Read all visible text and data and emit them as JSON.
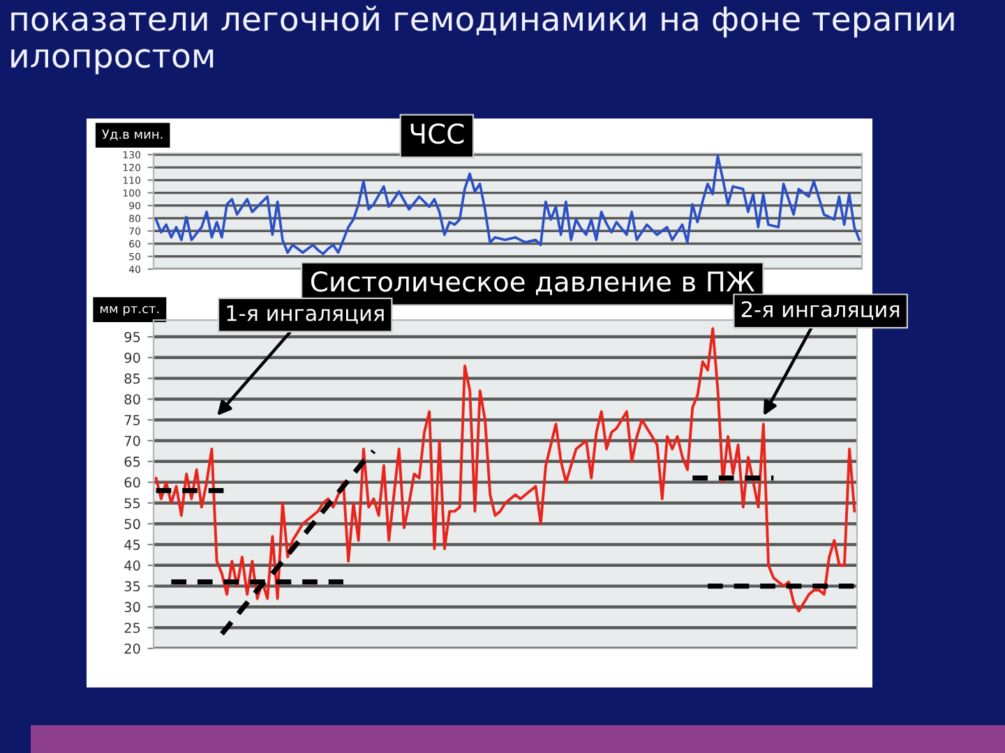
{
  "chart_data": [
    {
      "type": "line",
      "title": "показатели легочной гемодинамики на фоне терапии илопростом",
      "subtitle": "ЧСС",
      "ylabel": "Уд.в мин.",
      "ylim": [
        40,
        131
      ],
      "yticks": [
        40,
        50,
        60,
        70,
        80,
        90,
        100,
        110,
        120,
        130
      ],
      "grid": "y",
      "tick_labels": "y",
      "categories": [
        null,
        null,
        null,
        null,
        null,
        null,
        null,
        null,
        null,
        null,
        null,
        null,
        null,
        null,
        null,
        null,
        null,
        null,
        null,
        null,
        null,
        null,
        null,
        null,
        null,
        null,
        null,
        null,
        null,
        null,
        null,
        null,
        null,
        null,
        null,
        null,
        null,
        null,
        null,
        null,
        null,
        null,
        null,
        null,
        null,
        null,
        null,
        null,
        null,
        null,
        null,
        null,
        null,
        null,
        null,
        null,
        null,
        null,
        null,
        null,
        null,
        null,
        null,
        null,
        null,
        null,
        null,
        null,
        null,
        null,
        null,
        null,
        null,
        null,
        null,
        null,
        null,
        null,
        null,
        null,
        null,
        null,
        null,
        null,
        null,
        null,
        null,
        null,
        null,
        null,
        null,
        null,
        null,
        null,
        null,
        null,
        null,
        null,
        null,
        null,
        null,
        null,
        null,
        null,
        null,
        null,
        null,
        null,
        null,
        null,
        null,
        null,
        null,
        null,
        null,
        null,
        null,
        null,
        null,
        null,
        null,
        null,
        null,
        null,
        null,
        null,
        null,
        null,
        null,
        null,
        null,
        null,
        null,
        null,
        null,
        null,
        null,
        null,
        null,
        null
      ],
      "series": [
        {
          "color": "#2b4fc6",
          "values": [
            79,
            69,
            75,
            65,
            73,
            63,
            81,
            63,
            68,
            73,
            85,
            65,
            77,
            65,
            91,
            95,
            83,
            89,
            95,
            85,
            89,
            93,
            97,
            67,
            93,
            63,
            53,
            59,
            56,
            53,
            56,
            59,
            55,
            52,
            56,
            59,
            53,
            63,
            73,
            79,
            91,
            109,
            87,
            91,
            98,
            105,
            89,
            95,
            101,
            94,
            87,
            92,
            97,
            93,
            89,
            95,
            85,
            67,
            77,
            75,
            79,
            103,
            115,
            101,
            107,
            87,
            61,
            65,
            64,
            63,
            64,
            65,
            63,
            61,
            62,
            63,
            59,
            93,
            79,
            89,
            67,
            93,
            63,
            79,
            72,
            67,
            79,
            63,
            85,
            76,
            69,
            77,
            72,
            67,
            85,
            63,
            69,
            75,
            71,
            67,
            70,
            73,
            63,
            69,
            75,
            61,
            91,
            77,
            93,
            107,
            99,
            129,
            111,
            91,
            105,
            104,
            103,
            85,
            99,
            73,
            99,
            75,
            74,
            73,
            107,
            95,
            83,
            103,
            100,
            97,
            109,
            96,
            83,
            81,
            79,
            97,
            75,
            99,
            73,
            63
          ]
        }
      ]
    },
    {
      "type": "line",
      "title": "Систолическое давление в ПЖ",
      "ylabel": "мм рт.ст.",
      "ylim": [
        20,
        99
      ],
      "yticks": [
        20,
        25,
        30,
        35,
        40,
        45,
        50,
        55,
        60,
        65,
        70,
        75,
        80,
        85,
        90,
        95
      ],
      "grid": "y",
      "tick_labels": "y",
      "categories": [
        null,
        null,
        null,
        null,
        null,
        null,
        null,
        null,
        null,
        null,
        null,
        null,
        null,
        null,
        null,
        null,
        null,
        null,
        null,
        null,
        null,
        null,
        null,
        null,
        null,
        null,
        null,
        null,
        null,
        null,
        null,
        null,
        null,
        null,
        null,
        null,
        null,
        null,
        null,
        null,
        null,
        null,
        null,
        null,
        null,
        null,
        null,
        null,
        null,
        null,
        null,
        null,
        null,
        null,
        null,
        null,
        null,
        null,
        null,
        null,
        null,
        null,
        null,
        null,
        null,
        null,
        null,
        null,
        null,
        null,
        null,
        null,
        null,
        null,
        null,
        null,
        null,
        null,
        null,
        null,
        null,
        null,
        null,
        null,
        null,
        null,
        null,
        null,
        null,
        null,
        null,
        null,
        null,
        null,
        null,
        null,
        null,
        null,
        null,
        null,
        null,
        null,
        null,
        null,
        null,
        null,
        null,
        null,
        null,
        null,
        null,
        null,
        null,
        null,
        null,
        null,
        null,
        null,
        null,
        null,
        null,
        null,
        null,
        null,
        null,
        null,
        null,
        null,
        null,
        null,
        null,
        null,
        null,
        null,
        null,
        null,
        null,
        null,
        null
      ],
      "series": [
        {
          "color": "#e8251d",
          "values": [
            61,
            56,
            60,
            55,
            59,
            52,
            62,
            56,
            63,
            54,
            60,
            68,
            41,
            38,
            33,
            41,
            35,
            42,
            33,
            41,
            32,
            36,
            32,
            47,
            32,
            55,
            42,
            46,
            48,
            50,
            51,
            52,
            53,
            55,
            56,
            54,
            57,
            60,
            41,
            55,
            46,
            68,
            54,
            56,
            52,
            64,
            46,
            57,
            68,
            49,
            55,
            62,
            61,
            72,
            77,
            44,
            70,
            44,
            53,
            53,
            54,
            88,
            82,
            53,
            82,
            75,
            57,
            52,
            53,
            55,
            56,
            57,
            56,
            57,
            58,
            59,
            50,
            64,
            69,
            74,
            65,
            60,
            64,
            68,
            69,
            70,
            61,
            72,
            77,
            68,
            72,
            73,
            75,
            77,
            65,
            71,
            75,
            73,
            71,
            69,
            56,
            71,
            68,
            71,
            66,
            63,
            78,
            81,
            89,
            87,
            97,
            82,
            60,
            71,
            62,
            69,
            54,
            66,
            60,
            54,
            74,
            40,
            37,
            36,
            35,
            36,
            31,
            29,
            31,
            33,
            34,
            34,
            33,
            42,
            46,
            40,
            40,
            68,
            53
          ]
        },
        {
          "color": "#000000",
          "line_style": "dashed",
          "values": [
            58,
            58,
            58,
            58,
            58,
            58,
            58,
            58,
            58,
            58,
            58,
            58,
            58,
            58,
            58,
            null,
            null,
            null,
            null,
            null,
            null,
            null,
            null,
            null,
            null,
            null,
            null,
            null,
            null,
            null,
            null,
            null,
            null,
            null,
            null,
            null,
            null,
            null,
            null,
            null,
            null,
            null,
            null,
            null,
            null,
            null,
            null,
            null,
            null,
            null,
            null,
            null,
            null,
            null,
            null,
            null,
            null,
            null,
            null,
            null,
            null,
            null,
            null,
            null,
            null,
            null,
            null,
            null,
            null,
            null,
            null,
            null,
            null,
            null,
            null,
            null,
            null,
            null,
            null,
            null,
            null,
            null,
            null,
            null,
            null,
            null,
            null,
            null,
            null,
            null,
            null,
            null,
            null,
            null,
            null,
            null,
            null,
            null,
            null,
            null,
            null,
            null,
            null,
            null,
            null,
            null,
            null,
            null,
            null,
            null,
            null,
            null,
            null,
            null,
            null,
            null,
            null,
            null,
            null,
            null,
            null,
            null,
            null,
            null,
            null,
            null,
            null,
            null,
            null,
            null,
            null,
            null,
            null,
            null,
            null,
            null,
            null,
            null,
            null
          ]
        },
        {
          "color": "#000000",
          "line_style": "dashed",
          "values": [
            null,
            null,
            null,
            36,
            36,
            36,
            36,
            36,
            36,
            36,
            36,
            36,
            36,
            36,
            36,
            36,
            36,
            36,
            36,
            36,
            36,
            36,
            36,
            36,
            36,
            36,
            36,
            36,
            36,
            36,
            36,
            36,
            36,
            36,
            36,
            36,
            36,
            36,
            null,
            null,
            null,
            null,
            null,
            null,
            null,
            null,
            null,
            null,
            null,
            null,
            null,
            null,
            null,
            null,
            null,
            null,
            null,
            null,
            null,
            null,
            null,
            null,
            null,
            null,
            null,
            null,
            null,
            null,
            null,
            null,
            null,
            null,
            null,
            null,
            null,
            null,
            null,
            null,
            null,
            null,
            null,
            null,
            null,
            null,
            null,
            null,
            null,
            null,
            null,
            null,
            null,
            null,
            null,
            null,
            null,
            null,
            null,
            null,
            null,
            null,
            null,
            null,
            null,
            null,
            null,
            null,
            null,
            null,
            null,
            null,
            null,
            null,
            null,
            null,
            null,
            null,
            null,
            null,
            null,
            null,
            null,
            null,
            null,
            null,
            null,
            null,
            null,
            null,
            null,
            null,
            null,
            null,
            null,
            null,
            null,
            null,
            null,
            null,
            null
          ]
        },
        {
          "color": "#000000",
          "line_style": "dashed",
          "values": [
            null,
            null,
            null,
            null,
            null,
            null,
            null,
            null,
            null,
            null,
            null,
            null,
            null,
            23.5,
            25,
            26.5,
            28,
            29.5,
            31,
            32.5,
            34,
            35.5,
            36.5,
            38,
            39.5,
            41,
            42.5,
            44,
            45.5,
            47,
            48.5,
            50,
            51.5,
            53,
            54.5,
            56,
            57.5,
            59,
            60.5,
            62,
            63.5,
            65,
            66,
            67.5,
            null,
            null,
            null,
            null,
            null,
            null,
            null,
            null,
            null,
            null,
            null,
            null,
            null,
            null,
            null,
            null,
            null,
            null,
            null,
            null,
            null,
            null,
            null,
            null,
            null,
            null,
            null,
            null,
            null,
            null,
            null,
            null,
            null,
            null,
            null,
            null,
            null,
            null,
            null,
            null,
            null,
            null,
            null,
            null,
            null,
            null,
            null,
            null,
            null,
            null,
            null,
            null,
            null,
            null,
            null,
            null,
            null,
            null,
            null,
            null,
            null,
            null,
            null,
            null,
            null,
            null,
            null,
            null,
            null,
            null,
            null,
            null,
            null,
            null,
            null,
            null,
            null,
            null,
            null,
            null,
            null,
            null,
            null,
            null,
            null,
            null,
            null,
            null,
            null,
            null,
            null,
            null,
            null,
            null,
            null
          ]
        },
        {
          "color": "#000000",
          "line_style": "dashed",
          "values": [
            null,
            null,
            null,
            null,
            null,
            null,
            null,
            null,
            null,
            null,
            null,
            null,
            null,
            null,
            null,
            null,
            null,
            null,
            null,
            null,
            null,
            null,
            null,
            null,
            null,
            null,
            null,
            null,
            null,
            null,
            null,
            null,
            null,
            null,
            null,
            null,
            null,
            null,
            null,
            null,
            null,
            null,
            null,
            null,
            null,
            null,
            null,
            null,
            null,
            null,
            null,
            null,
            null,
            null,
            null,
            null,
            null,
            null,
            null,
            null,
            null,
            null,
            null,
            null,
            null,
            null,
            null,
            null,
            null,
            null,
            null,
            null,
            null,
            null,
            null,
            null,
            null,
            null,
            null,
            null,
            null,
            null,
            null,
            null,
            null,
            null,
            null,
            null,
            null,
            null,
            null,
            null,
            null,
            null,
            null,
            null,
            null,
            null,
            null,
            null,
            null,
            null,
            null,
            null,
            null,
            null,
            61,
            61,
            61,
            61,
            61,
            61,
            61,
            61,
            61,
            61,
            61,
            61,
            61,
            61,
            61,
            61,
            61,
            null,
            null,
            null,
            null,
            null,
            null,
            null,
            null,
            null,
            null,
            null,
            null,
            null,
            null,
            null,
            null
          ]
        },
        {
          "color": "#000000",
          "line_style": "dashed",
          "values": [
            null,
            null,
            null,
            null,
            null,
            null,
            null,
            null,
            null,
            null,
            null,
            null,
            null,
            null,
            null,
            null,
            null,
            null,
            null,
            null,
            null,
            null,
            null,
            null,
            null,
            null,
            null,
            null,
            null,
            null,
            null,
            null,
            null,
            null,
            null,
            null,
            null,
            null,
            null,
            null,
            null,
            null,
            null,
            null,
            null,
            null,
            null,
            null,
            null,
            null,
            null,
            null,
            null,
            null,
            null,
            null,
            null,
            null,
            null,
            null,
            null,
            null,
            null,
            null,
            null,
            null,
            null,
            null,
            null,
            null,
            null,
            null,
            null,
            null,
            null,
            null,
            null,
            null,
            null,
            null,
            null,
            null,
            null,
            null,
            null,
            null,
            null,
            null,
            null,
            null,
            null,
            null,
            null,
            null,
            null,
            null,
            null,
            null,
            null,
            null,
            null,
            null,
            null,
            null,
            null,
            null,
            null,
            null,
            null,
            35,
            35,
            35,
            35,
            35,
            35,
            35,
            35,
            35,
            35,
            35,
            35,
            35,
            35,
            35,
            35,
            35,
            35,
            35,
            35,
            35,
            35,
            35,
            35,
            35,
            35,
            35,
            35,
            35,
            35
          ]
        }
      ],
      "annotations": [
        "1-я ингаляция",
        "2-я ингаляция"
      ]
    }
  ]
}
